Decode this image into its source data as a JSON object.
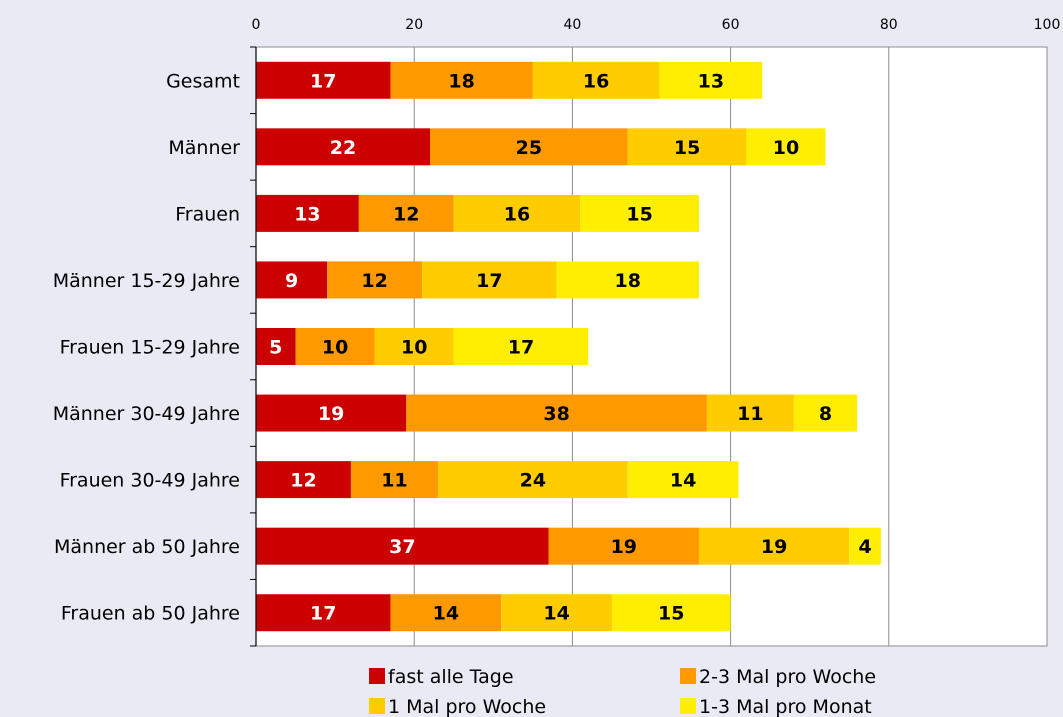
{
  "chart_data": {
    "type": "bar",
    "orientation": "horizontal",
    "stacked": true,
    "categories": [
      "Gesamt",
      "Männer",
      "Frauen",
      "Männer 15-29 Jahre",
      "Frauen 15-29 Jahre",
      "Männer 30-49 Jahre",
      "Frauen 30-49 Jahre",
      "Männer ab 50 Jahre",
      "Frauen ab 50 Jahre"
    ],
    "series": [
      {
        "name": "fast alle Tage",
        "color": "#cc0000",
        "label_color": "#ffffff",
        "values": [
          17,
          22,
          13,
          9,
          5,
          19,
          12,
          37,
          17
        ]
      },
      {
        "name": "2-3 Mal pro Woche",
        "color": "#ff9900",
        "label_color": "#000000",
        "values": [
          18,
          25,
          12,
          12,
          10,
          38,
          11,
          19,
          14
        ]
      },
      {
        "name": "1 Mal pro Woche",
        "color": "#ffcc00",
        "label_color": "#000000",
        "values": [
          16,
          15,
          16,
          17,
          10,
          11,
          24,
          19,
          14
        ]
      },
      {
        "name": "1-3 Mal pro Monat",
        "color": "#ffee00",
        "label_color": "#000000",
        "values": [
          13,
          10,
          15,
          18,
          17,
          8,
          14,
          4,
          15
        ]
      }
    ],
    "xlim": [
      0,
      100
    ],
    "xticks": [
      0,
      20,
      40,
      60,
      80,
      100
    ],
    "x_axis_position": "top",
    "grid": true,
    "legend_position": "bottom",
    "title": "",
    "xlabel": "",
    "ylabel": ""
  }
}
